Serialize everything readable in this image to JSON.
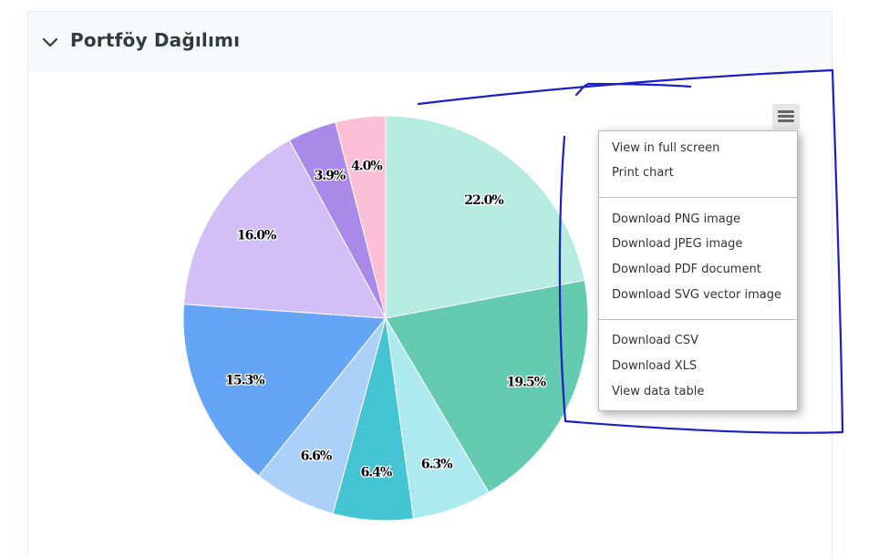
{
  "panel": {
    "title": "Portföy Dağılımı"
  },
  "menu": {
    "items": [
      "View in full screen",
      "Print chart",
      "Download PNG image",
      "Download JPEG image",
      "Download PDF document",
      "Download SVG vector image",
      "Download CSV",
      "Download XLS",
      "View data table"
    ]
  },
  "chart_data": {
    "type": "pie",
    "title": "",
    "values": [
      22.0,
      19.5,
      6.3,
      6.4,
      6.6,
      15.3,
      16.0,
      3.9,
      4.0
    ],
    "labels": [
      "22.0%",
      "19.5%",
      "6.3%",
      "6.4%",
      "6.6%",
      "15.3%",
      "16.0%",
      "3.9%",
      "4.0%"
    ],
    "colors": [
      "#b5ecdf",
      "#65cbb0",
      "#aceaf0",
      "#45c5d3",
      "#abd1fa",
      "#64a6f5",
      "#d2bff8",
      "#a98ae8",
      "#fdbfd6"
    ],
    "start_angle": "12 o'clock, clockwise"
  },
  "annotation": {
    "color": "#1a1fc8"
  }
}
